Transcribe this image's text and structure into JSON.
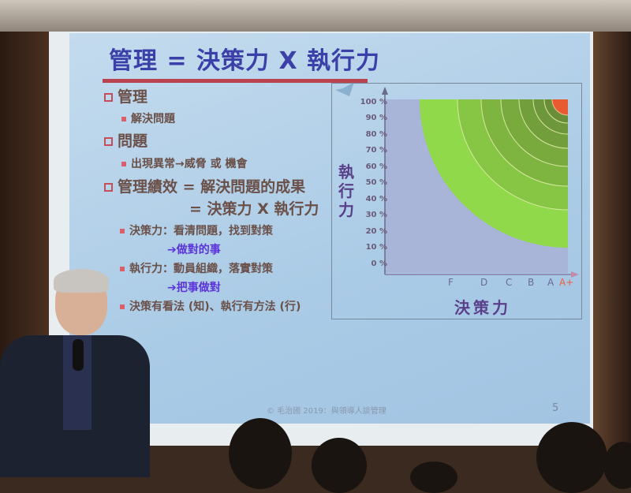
{
  "slide": {
    "title": "管理 = 決策力 X 執行力",
    "bullets": [
      {
        "level": 1,
        "text": "管理"
      },
      {
        "level": 2,
        "text": "解決問題"
      },
      {
        "level": 1,
        "text": "問題"
      },
      {
        "level": 2,
        "text": "出現異常→威脅 或 機會"
      },
      {
        "level": 1,
        "text": "管理績效 = 解決問題的成果"
      },
      {
        "level": 1,
        "text": "= 決策力 X 執行力"
      },
      {
        "level": 2,
        "text": "決策力：看清問題，找到對策"
      },
      {
        "level": 3,
        "text": "➔做對的事"
      },
      {
        "level": 2,
        "text": "執行力：動員組織，落實對策"
      },
      {
        "level": 3,
        "text": "➔把事做對"
      },
      {
        "level": 2,
        "text": "決策有看法 (知)、執行有方法 (行)"
      }
    ],
    "chart": {
      "y_label": "執行力",
      "x_label": "決策力",
      "y_ticks": [
        "100 %",
        "90 %",
        "80 %",
        "70 %",
        "60 %",
        "50 %",
        "40 %",
        "30 %",
        "20 %",
        "10 %",
        "0 %"
      ],
      "x_ticks": [
        "F",
        "D",
        "C",
        "B",
        "A",
        "A+"
      ],
      "colors": {
        "background": "#a8b4d8",
        "zone": "#8fd94a",
        "top": "#e85a30"
      }
    },
    "footer": "© 毛治國 2019：與領導人談管理",
    "page_number": "5"
  }
}
